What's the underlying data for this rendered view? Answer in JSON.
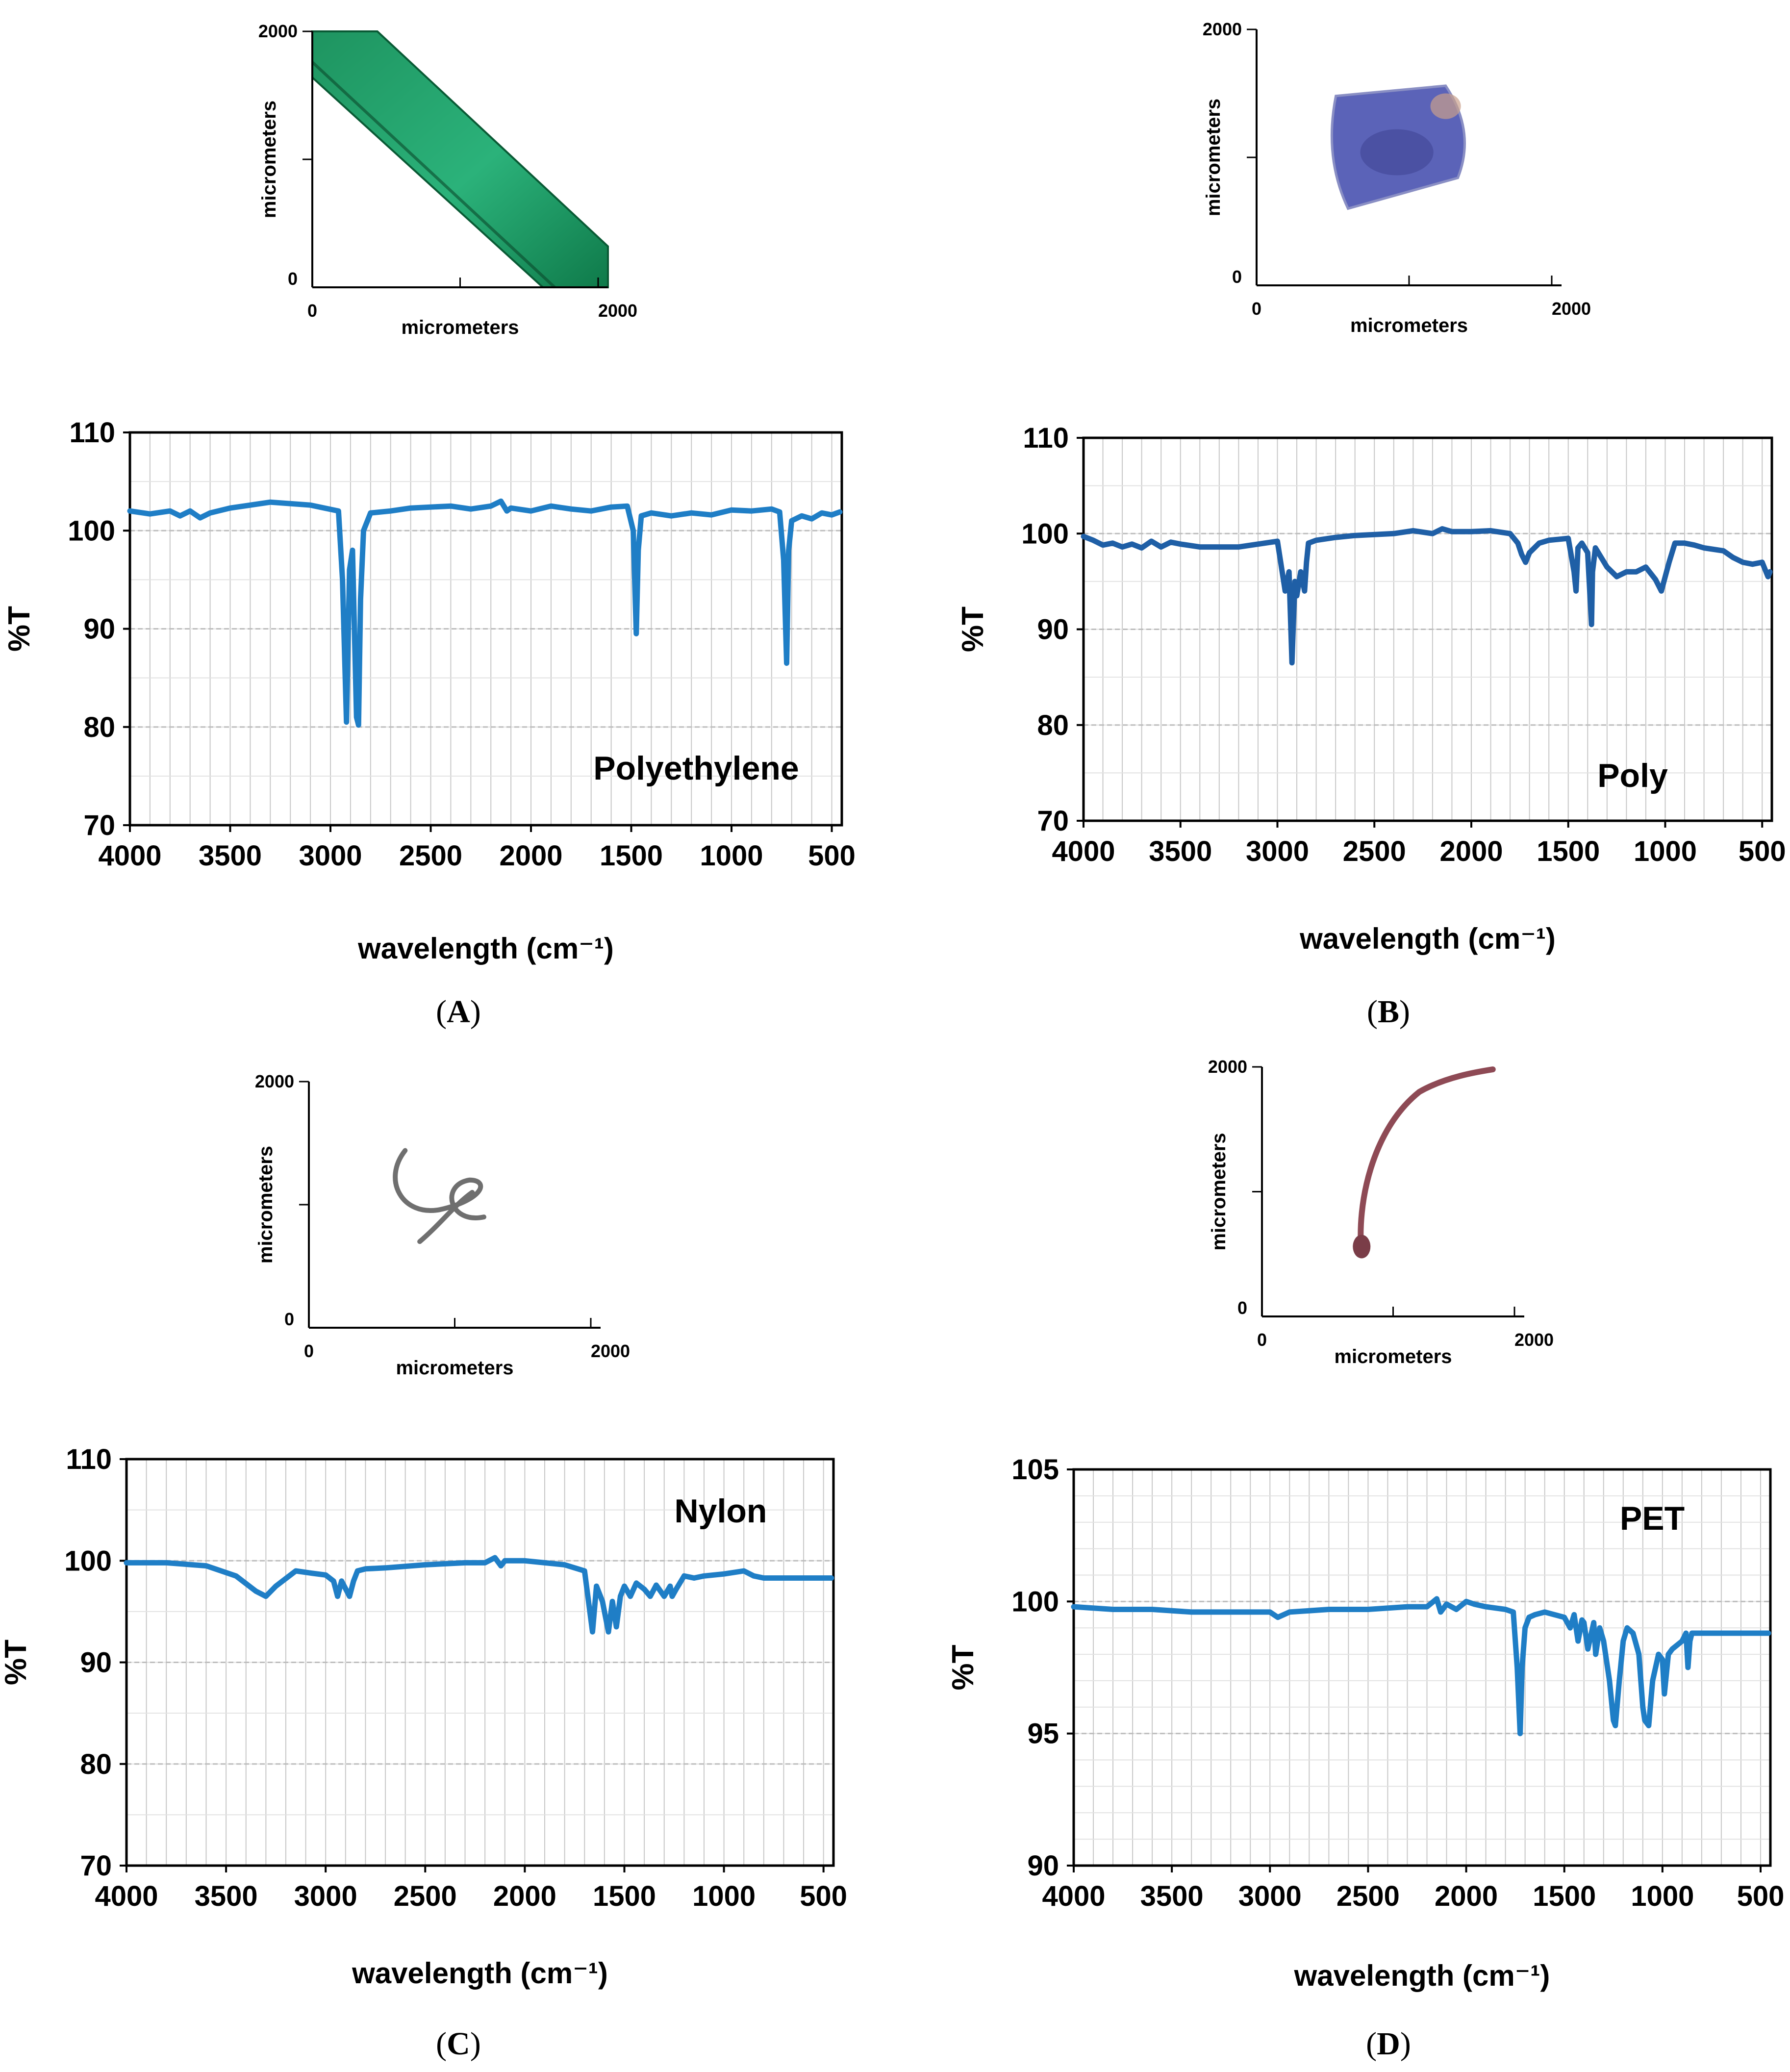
{
  "figure": {
    "panel_letters": [
      "A",
      "B",
      "C",
      "D"
    ],
    "colors": {
      "spectrum_A": "#1f7ec6",
      "spectrum_B": "#1f5fa6",
      "spectrum_C": "#1f7ec6",
      "spectrum_D": "#1f7ec6",
      "grid": "#c8c8c8",
      "axis": "#000000"
    }
  },
  "micrographs": [
    {
      "panel": "A",
      "xlabel": "micrometers",
      "ylabel": "micrometers",
      "x_ticks": [
        "0",
        "2000"
      ],
      "y_ticks": [
        "0",
        "2000"
      ],
      "sample_image": "green-film-strip-micrograph"
    },
    {
      "panel": "B",
      "xlabel": "micrometers",
      "ylabel": "micrometers",
      "x_ticks": [
        "0",
        "2000"
      ],
      "y_ticks": [
        "0",
        "2000"
      ],
      "sample_image": "blue-fragment-micrograph"
    },
    {
      "panel": "C",
      "xlabel": "micrometers",
      "ylabel": "micrometers",
      "x_ticks": [
        "0",
        "2000"
      ],
      "y_ticks": [
        "0",
        "2000"
      ],
      "sample_image": "gray-fiber-micrograph"
    },
    {
      "panel": "D",
      "xlabel": "micrometers",
      "ylabel": "micrometers",
      "x_ticks": [
        "0",
        "2000"
      ],
      "y_ticks": [
        "0",
        "2000"
      ],
      "sample_image": "reddish-fiber-micrograph"
    }
  ],
  "chart_data": [
    {
      "panel": "A",
      "type": "line",
      "title": "Polyethylene",
      "xlabel": "wavelength (cm⁻¹)",
      "ylabel": "%T",
      "xlim": [
        4000,
        450
      ],
      "ylim": [
        70,
        110
      ],
      "x_ticks": [
        4000,
        3500,
        3000,
        2500,
        2000,
        1500,
        1000,
        500
      ],
      "y_ticks": [
        70,
        80,
        90,
        100,
        110
      ],
      "grid": true,
      "series": [
        {
          "name": "Polyethylene",
          "x": [
            4000,
            3900,
            3800,
            3750,
            3700,
            3650,
            3600,
            3500,
            3300,
            3100,
            2960,
            2940,
            2920,
            2905,
            2890,
            2870,
            2860,
            2850,
            2835,
            2800,
            2700,
            2600,
            2400,
            2300,
            2200,
            2150,
            2120,
            2100,
            2000,
            1900,
            1800,
            1700,
            1600,
            1520,
            1490,
            1475,
            1465,
            1450,
            1400,
            1300,
            1200,
            1100,
            1000,
            900,
            800,
            760,
            740,
            725,
            715,
            700,
            650,
            600,
            550,
            500,
            460
          ],
          "y": [
            102,
            101.7,
            102,
            101.5,
            102,
            101.3,
            101.8,
            102.3,
            102.9,
            102.6,
            102,
            95,
            80.5,
            96,
            98,
            81,
            80.2,
            93,
            100,
            101.8,
            102,
            102.3,
            102.5,
            102.2,
            102.5,
            103,
            102,
            102.3,
            102,
            102.5,
            102.2,
            102,
            102.4,
            102.5,
            100,
            89.5,
            98,
            101.5,
            101.8,
            101.5,
            101.8,
            101.6,
            102.1,
            102,
            102.2,
            101.9,
            97,
            86.5,
            98,
            101,
            101.5,
            101.2,
            101.8,
            101.6,
            101.9
          ]
        }
      ]
    },
    {
      "panel": "B",
      "type": "line",
      "title": "Poly",
      "xlabel": "wavelength (cm⁻¹)",
      "ylabel": "%T",
      "xlim": [
        4000,
        450
      ],
      "ylim": [
        70,
        110
      ],
      "x_ticks": [
        4000,
        3500,
        3000,
        2500,
        2000,
        1500,
        1000,
        500
      ],
      "y_ticks": [
        70,
        80,
        90,
        100,
        110
      ],
      "grid": true,
      "series": [
        {
          "name": "Poly",
          "x": [
            4000,
            3950,
            3900,
            3850,
            3800,
            3750,
            3700,
            3650,
            3600,
            3550,
            3500,
            3400,
            3200,
            3000,
            2960,
            2940,
            2925,
            2910,
            2900,
            2880,
            2860,
            2850,
            2840,
            2800,
            2700,
            2600,
            2400,
            2300,
            2200,
            2150,
            2100,
            2000,
            1900,
            1800,
            1760,
            1740,
            1720,
            1700,
            1650,
            1600,
            1500,
            1470,
            1460,
            1450,
            1430,
            1400,
            1380,
            1375,
            1360,
            1300,
            1250,
            1200,
            1150,
            1100,
            1050,
            1020,
            1000,
            980,
            950,
            900,
            850,
            800,
            700,
            650,
            600,
            550,
            500,
            470,
            460
          ],
          "y": [
            99.7,
            99.3,
            98.8,
            99,
            98.6,
            98.9,
            98.5,
            99.2,
            98.6,
            99.1,
            98.9,
            98.6,
            98.6,
            99.2,
            94,
            96,
            86.5,
            95,
            93.5,
            96,
            94,
            97,
            99,
            99.3,
            99.6,
            99.8,
            100,
            100.3,
            100,
            100.5,
            100.2,
            100.2,
            100.3,
            100,
            99,
            97.8,
            97,
            98,
            99,
            99.3,
            99.5,
            96,
            94,
            98.5,
            99,
            98,
            90.5,
            96,
            98.5,
            96.5,
            95.5,
            96,
            96,
            96.5,
            95.2,
            94,
            95.5,
            97,
            99,
            99,
            98.8,
            98.5,
            98.2,
            97.5,
            97,
            96.8,
            97,
            95.5,
            96
          ]
        }
      ]
    },
    {
      "panel": "C",
      "type": "line",
      "title": "Nylon",
      "xlabel": "wavelength (cm⁻¹)",
      "ylabel": "%T",
      "xlim": [
        4000,
        450
      ],
      "ylim": [
        70,
        110
      ],
      "x_ticks": [
        4000,
        3500,
        3000,
        2500,
        2000,
        1500,
        1000,
        500
      ],
      "y_ticks": [
        70,
        80,
        90,
        100,
        110
      ],
      "grid": true,
      "series": [
        {
          "name": "Nylon",
          "x": [
            4000,
            3800,
            3600,
            3450,
            3350,
            3300,
            3250,
            3150,
            3080,
            3000,
            2960,
            2940,
            2920,
            2880,
            2860,
            2840,
            2800,
            2700,
            2500,
            2300,
            2200,
            2150,
            2120,
            2100,
            2000,
            1900,
            1800,
            1700,
            1680,
            1660,
            1640,
            1610,
            1580,
            1560,
            1540,
            1520,
            1500,
            1470,
            1440,
            1400,
            1370,
            1340,
            1300,
            1270,
            1260,
            1240,
            1200,
            1150,
            1100,
            1000,
            900,
            850,
            800,
            700,
            600,
            500,
            460
          ],
          "y": [
            99.8,
            99.8,
            99.5,
            98.5,
            97,
            96.5,
            97.5,
            99,
            98.8,
            98.6,
            98,
            96.5,
            98,
            96.5,
            98,
            99,
            99.2,
            99.3,
            99.6,
            99.8,
            99.8,
            100.3,
            99.5,
            100,
            100,
            99.8,
            99.6,
            99,
            96,
            93,
            97.5,
            96,
            93,
            96,
            93.5,
            96.5,
            97.5,
            96.5,
            97.8,
            97.2,
            96.5,
            97.6,
            96.5,
            97.5,
            96.5,
            97.2,
            98.5,
            98.3,
            98.5,
            98.7,
            99,
            98.5,
            98.3,
            98.3,
            98.3,
            98.3,
            98.3
          ]
        }
      ]
    },
    {
      "panel": "D",
      "type": "line",
      "title": "PET",
      "xlabel": "wavelength (cm⁻¹)",
      "ylabel": "%T",
      "xlim": [
        4000,
        450
      ],
      "ylim": [
        90,
        105
      ],
      "x_ticks": [
        4000,
        3500,
        3000,
        2500,
        2000,
        1500,
        1000,
        500
      ],
      "y_ticks": [
        90,
        95,
        100,
        105
      ],
      "grid": true,
      "series": [
        {
          "name": "PET",
          "x": [
            4000,
            3800,
            3600,
            3400,
            3200,
            3000,
            2960,
            2900,
            2700,
            2500,
            2300,
            2200,
            2150,
            2130,
            2100,
            2050,
            2000,
            1960,
            1900,
            1800,
            1760,
            1740,
            1725,
            1715,
            1700,
            1680,
            1650,
            1600,
            1550,
            1500,
            1470,
            1450,
            1430,
            1410,
            1400,
            1380,
            1350,
            1340,
            1320,
            1300,
            1270,
            1250,
            1240,
            1220,
            1200,
            1180,
            1150,
            1120,
            1100,
            1090,
            1070,
            1050,
            1020,
            1000,
            990,
            970,
            950,
            900,
            880,
            870,
            860,
            850,
            800,
            700,
            600,
            500,
            460
          ],
          "y": [
            99.8,
            99.7,
            99.7,
            99.6,
            99.6,
            99.6,
            99.4,
            99.6,
            99.7,
            99.7,
            99.8,
            99.8,
            100.1,
            99.6,
            99.9,
            99.7,
            100,
            99.9,
            99.8,
            99.7,
            99.6,
            97.5,
            95,
            97.5,
            99,
            99.4,
            99.5,
            99.6,
            99.5,
            99.4,
            99,
            99.5,
            98.5,
            99.3,
            99.2,
            98.2,
            99.2,
            98,
            99,
            98.5,
            97,
            95.5,
            95.3,
            97,
            98.5,
            99,
            98.8,
            98,
            96,
            95.5,
            95.3,
            97,
            98,
            97.8,
            96.5,
            98,
            98.2,
            98.5,
            98.8,
            97.5,
            98.5,
            98.8,
            98.8,
            98.8,
            98.8,
            98.8,
            98.8
          ]
        }
      ]
    }
  ]
}
